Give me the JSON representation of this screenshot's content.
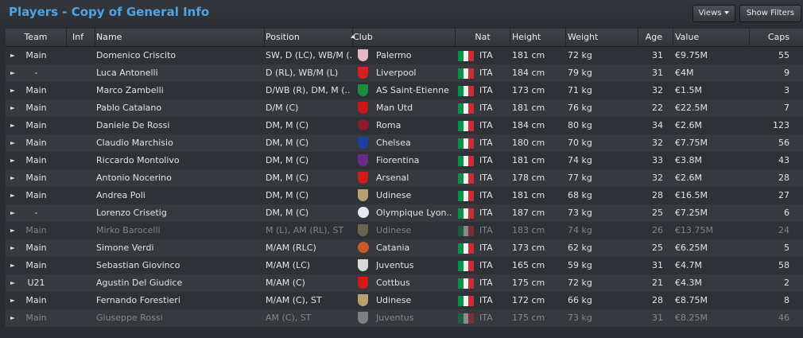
{
  "window": {
    "title": "Players - Copy of General Info"
  },
  "toolbar": {
    "views_label": "Views",
    "show_filters_label": "Show Filters"
  },
  "columns": [
    "Team",
    "Inf",
    "Name",
    "Position",
    "Club",
    "Nat",
    "Height",
    "Weight",
    "Age",
    "Value",
    "Caps"
  ],
  "rows": [
    {
      "team": "Main",
      "inf": "",
      "name": "Domenico Criscito",
      "position": "SW, D (LC), WB/M (..",
      "club": "Palermo",
      "crest": "#e8b8c8",
      "nat": "ITA",
      "height": "181 cm",
      "weight": "72 kg",
      "age": "31",
      "value": "€9.75M",
      "caps": "55"
    },
    {
      "team": "-",
      "inf": "",
      "name": "Luca Antonelli",
      "position": "D (RL), WB/M (L)",
      "club": "Liverpool",
      "crest": "#d42020",
      "nat": "ITA",
      "height": "184 cm",
      "weight": "79 kg",
      "age": "31",
      "value": "€4M",
      "caps": "9"
    },
    {
      "team": "Main",
      "inf": "",
      "name": "Marco Zambelli",
      "position": "D/WB (R), DM, M (..",
      "club": "AS Saint-Etienne",
      "crest": "#1a8c3c",
      "nat": "ITA",
      "height": "173 cm",
      "weight": "71 kg",
      "age": "32",
      "value": "€1.5M",
      "caps": "3"
    },
    {
      "team": "Main",
      "inf": "",
      "name": "Pablo Catalano",
      "position": "D/M (C)",
      "club": "Man Utd",
      "crest": "#c81818",
      "nat": "ITA",
      "height": "181 cm",
      "weight": "76 kg",
      "age": "22",
      "value": "€22.5M",
      "caps": "7"
    },
    {
      "team": "Main",
      "inf": "",
      "name": "Daniele De Rossi",
      "position": "DM, M (C)",
      "club": "Roma",
      "crest": "#8b1a2a",
      "nat": "ITA",
      "height": "184 cm",
      "weight": "80 kg",
      "age": "34",
      "value": "€2.6M",
      "caps": "123"
    },
    {
      "team": "Main",
      "inf": "",
      "name": "Claudio Marchisio",
      "position": "DM, M (C)",
      "club": "Chelsea",
      "crest": "#1c3fa0",
      "nat": "ITA",
      "height": "180 cm",
      "weight": "70 kg",
      "age": "32",
      "value": "€7.75M",
      "caps": "56"
    },
    {
      "team": "Main",
      "inf": "",
      "name": "Riccardo Montolivo",
      "position": "DM, M (C)",
      "club": "Fiorentina",
      "crest": "#6a2a8c",
      "nat": "ITA",
      "height": "181 cm",
      "weight": "74 kg",
      "age": "33",
      "value": "€3.8M",
      "caps": "43"
    },
    {
      "team": "Main",
      "inf": "",
      "name": "Antonio Nocerino",
      "position": "DM, M (C)",
      "club": "Arsenal",
      "crest": "#d01c1c",
      "nat": "ITA",
      "height": "178 cm",
      "weight": "77 kg",
      "age": "32",
      "value": "€2.6M",
      "caps": "28"
    },
    {
      "team": "Main",
      "inf": "",
      "name": "Andrea Poli",
      "position": "DM, M (C)",
      "club": "Udinese",
      "crest": "#b8a070",
      "nat": "ITA",
      "height": "181 cm",
      "weight": "68 kg",
      "age": "28",
      "value": "€16.5M",
      "caps": "27"
    },
    {
      "team": "-",
      "inf": "",
      "name": "Lorenzo Crisetig",
      "position": "DM, M (C)",
      "club": "Olympique Lyon..",
      "crest": "#e8e8f0",
      "nat": "ITA",
      "height": "187 cm",
      "weight": "73 kg",
      "age": "25",
      "value": "€7.25M",
      "caps": "6"
    },
    {
      "team": "Main",
      "inf": "",
      "name": "Mirko Barocelli",
      "position": "M (L), AM (RL), ST",
      "club": "Udinese",
      "crest": "#b8a070",
      "nat": "ITA",
      "height": "183 cm",
      "weight": "74 kg",
      "age": "26",
      "value": "€13.75M",
      "caps": "24",
      "dim": true
    },
    {
      "team": "Main",
      "inf": "",
      "name": "Simone Verdi",
      "position": "M/AM (RLC)",
      "club": "Catania",
      "crest": "#c85a2a",
      "nat": "ITA",
      "height": "173 cm",
      "weight": "62 kg",
      "age": "25",
      "value": "€6.25M",
      "caps": "5"
    },
    {
      "team": "Main",
      "inf": "",
      "name": "Sebastian Giovinco",
      "position": "M/AM (LC)",
      "club": "Juventus",
      "crest": "#d8d8d8",
      "nat": "ITA",
      "height": "165 cm",
      "weight": "59 kg",
      "age": "31",
      "value": "€4.7M",
      "caps": "58"
    },
    {
      "team": "U21",
      "inf": "",
      "name": "Agustin Del Giudice",
      "position": "M/AM (C)",
      "club": "Cottbus",
      "crest": "#d41818",
      "nat": "ITA",
      "height": "175 cm",
      "weight": "72 kg",
      "age": "21",
      "value": "€4.3M",
      "caps": "2"
    },
    {
      "team": "Main",
      "inf": "",
      "name": "Fernando Forestieri",
      "position": "M/AM (C), ST",
      "club": "Udinese",
      "crest": "#b8a070",
      "nat": "ITA",
      "height": "172 cm",
      "weight": "66 kg",
      "age": "28",
      "value": "€8.75M",
      "caps": "8"
    },
    {
      "team": "Main",
      "inf": "",
      "name": "Giuseppe Rossi",
      "position": "AM (C), ST",
      "club": "Juventus",
      "crest": "#d8d8d8",
      "nat": "ITA",
      "height": "175 cm",
      "weight": "73 kg",
      "age": "31",
      "value": "€8.25M",
      "caps": "46",
      "dim": true
    }
  ]
}
